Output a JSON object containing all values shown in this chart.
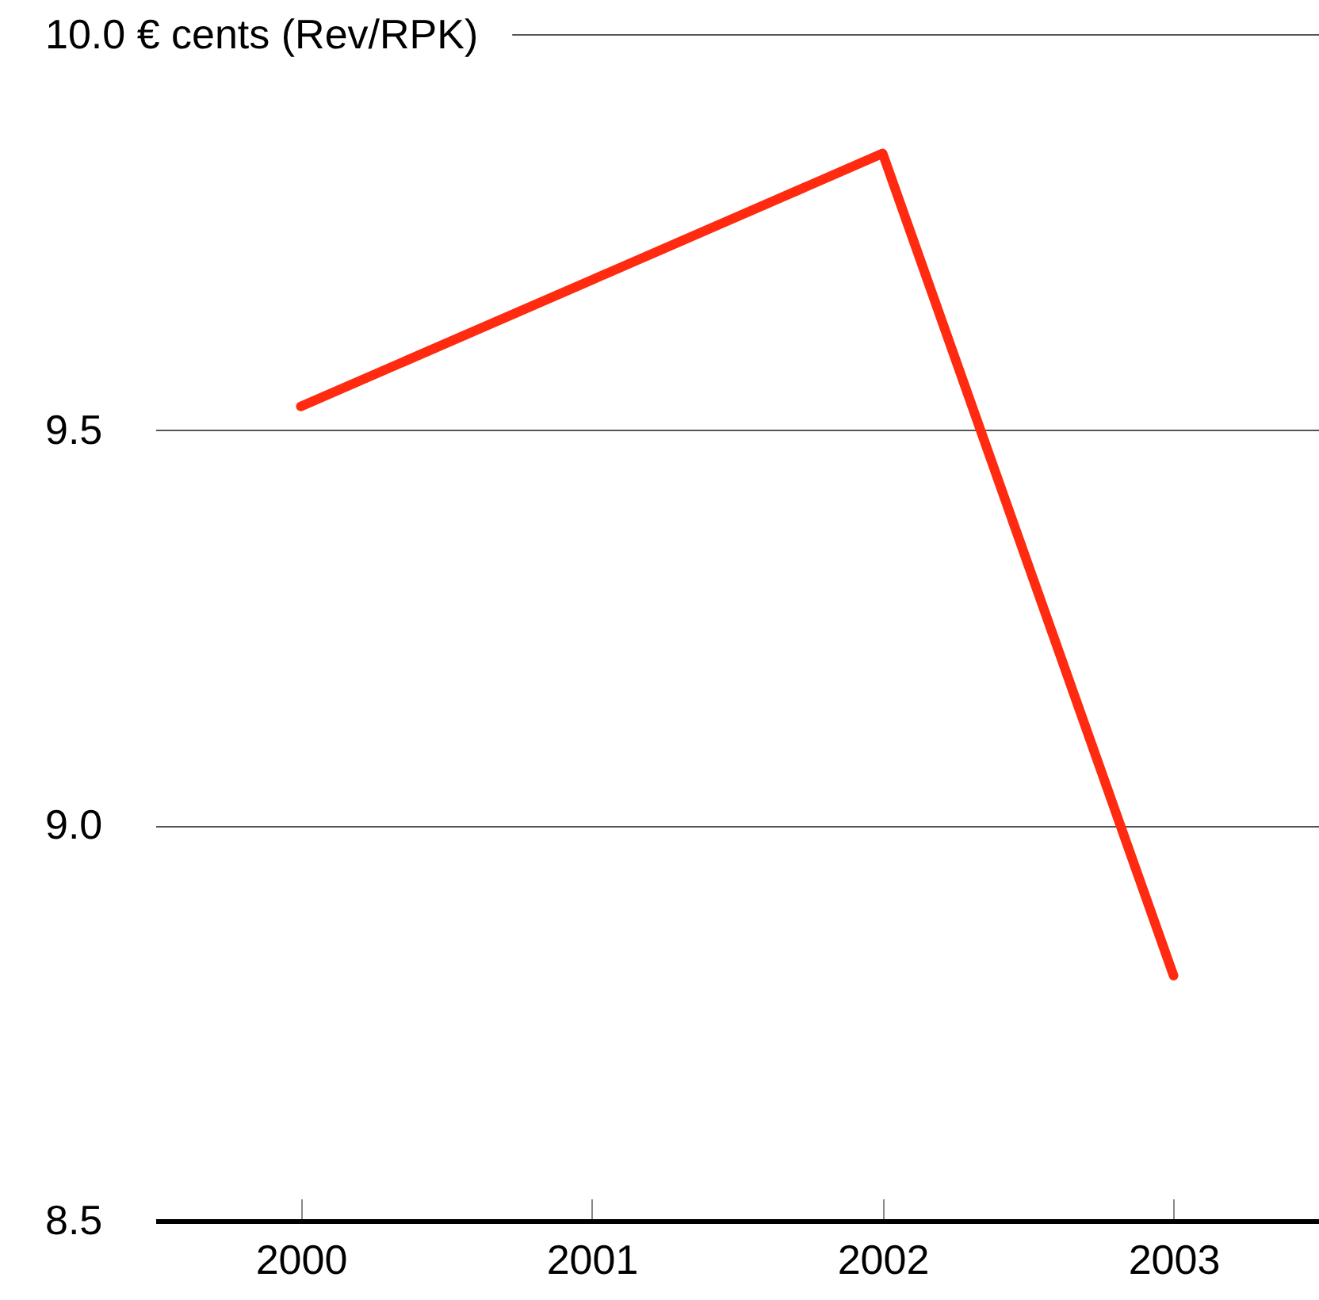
{
  "chart_data": {
    "type": "line",
    "categories": [
      "2000",
      "2001",
      "2002",
      "2003"
    ],
    "series": [
      {
        "color": "#ff2a10",
        "values": [
          9.53,
          9.69,
          9.85,
          8.81
        ]
      }
    ],
    "ylim": [
      8.5,
      10
    ],
    "yticks": [
      8.5,
      {
        "value": 9,
        "label": "9.0"
      },
      9.5,
      {
        "value": 10,
        "label": "10.0 € cents (Rev/RPK)"
      }
    ],
    "grid": "y"
  }
}
